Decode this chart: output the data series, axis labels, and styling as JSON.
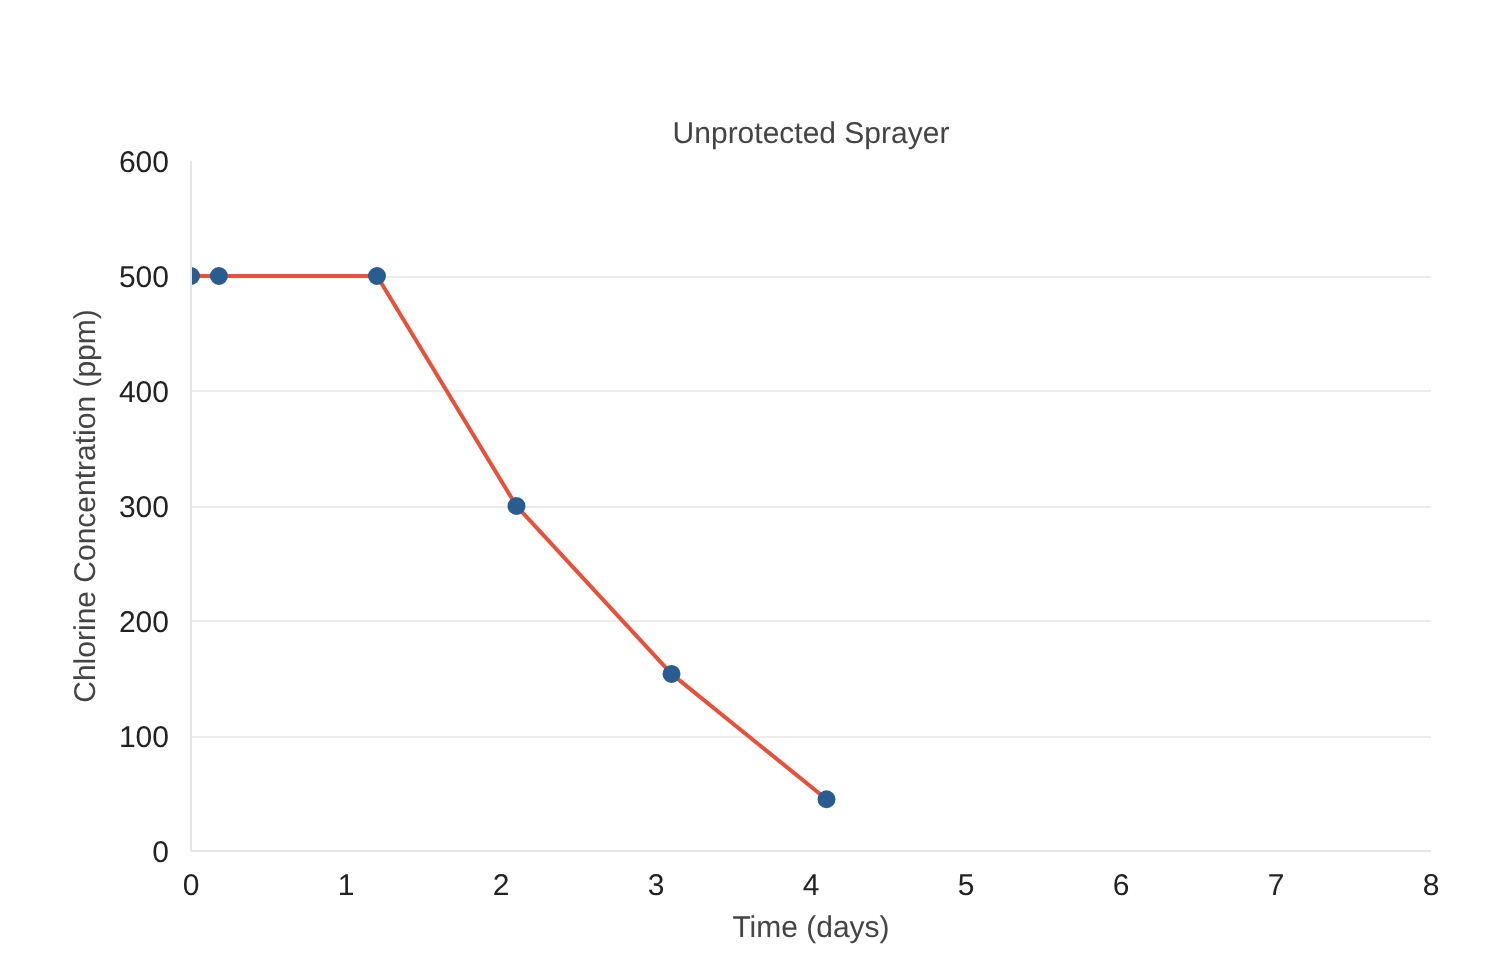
{
  "chart_data": {
    "type": "line",
    "title": "Unprotected Sprayer",
    "xlabel": "Time (days)",
    "ylabel": "Chlorine Concentration (ppm)",
    "x": [
      0,
      0.18,
      1.2,
      2.1,
      3.1,
      4.1
    ],
    "series": [
      {
        "color": "#e8503a",
        "values": [
          500,
          500,
          500,
          300,
          154,
          45
        ]
      }
    ],
    "marker": "circle",
    "xlim": [
      0,
      8
    ],
    "xticks": [
      0,
      1,
      2,
      3,
      4,
      5,
      6,
      7,
      8
    ],
    "ylim": [
      0,
      600
    ],
    "yticks": [
      0,
      100,
      200,
      300,
      400,
      500,
      600
    ],
    "grid": "y"
  }
}
